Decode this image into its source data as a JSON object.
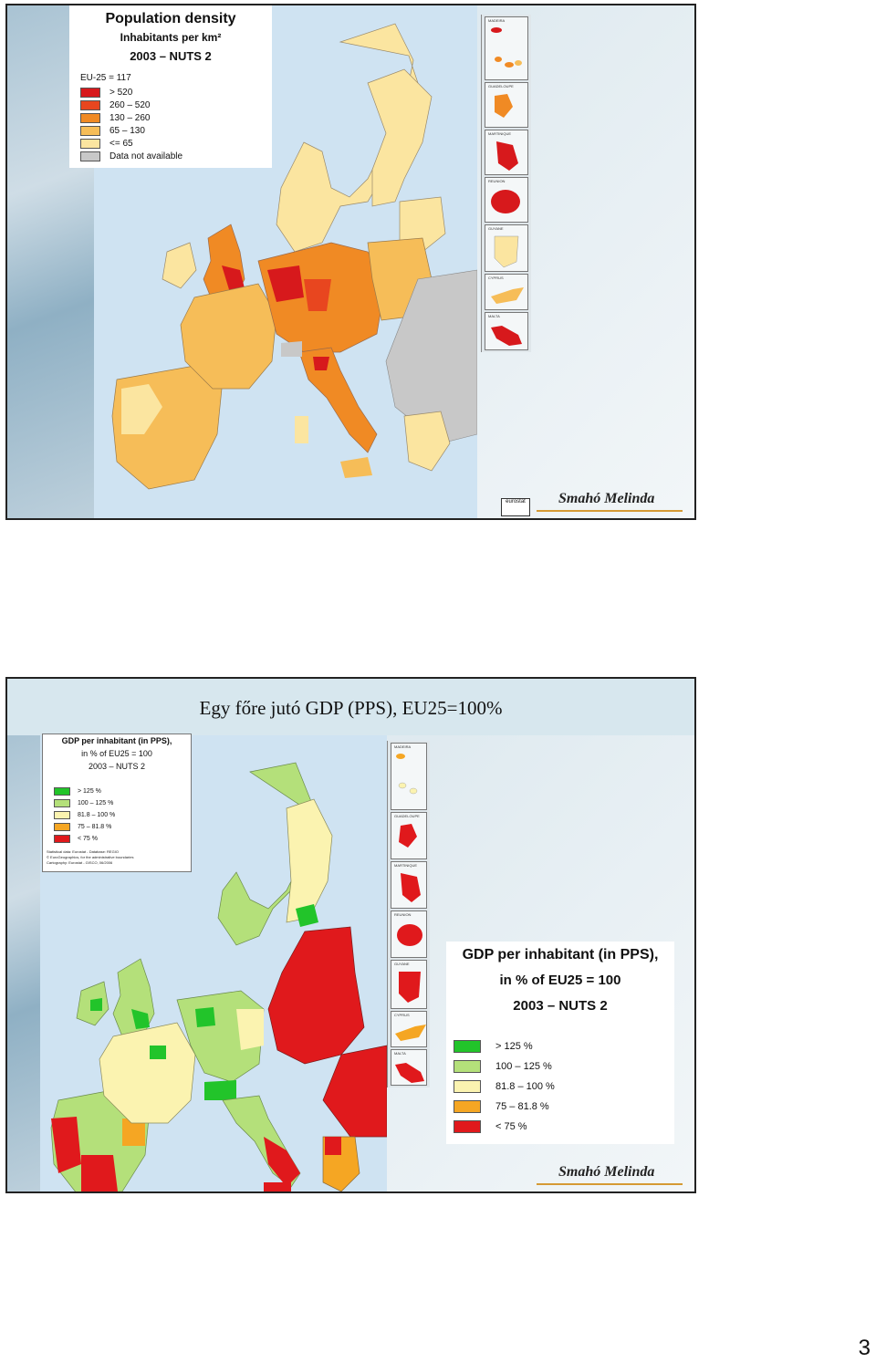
{
  "slide1": {
    "legend": {
      "title": "Population density",
      "subtitle1": "Inhabitants per km²",
      "subtitle2": "2003 – NUTS 2",
      "eu_average": "EU-25 = 117",
      "classes": [
        {
          "label": "> 520",
          "color": "#d7191c"
        },
        {
          "label": "260 – 520",
          "color": "#e8461f"
        },
        {
          "label": "130 – 260",
          "color": "#f08a24"
        },
        {
          "label": "65 – 130",
          "color": "#f6bd58"
        },
        {
          "label": "<= 65",
          "color": "#fbe5a0"
        },
        {
          "label": "Data not available",
          "color": "#c8c8c8"
        }
      ]
    },
    "insets": [
      "MADEIRA",
      "CANARIAS",
      "GUADELOUPE",
      "MARTINIQUE",
      "REUNION",
      "GUYANE",
      "CYPRUS",
      "MALTA"
    ],
    "author": "Smahó Melinda",
    "logo": "eurostat"
  },
  "slide2": {
    "title": "Egy főre jutó GDP (PPS), EU25=100%",
    "legend_small": {
      "title1": "GDP per inhabitant (in PPS),",
      "title2": "in % of EU25 = 100",
      "title3": "2003 – NUTS 2",
      "classes": [
        {
          "label": "> 125 %",
          "color": "#22c42a"
        },
        {
          "label": "100 – 125 %",
          "color": "#b4e07a"
        },
        {
          "label": "81.8 – 100 %",
          "color": "#fbf3b0"
        },
        {
          "label": "75 – 81.8 %",
          "color": "#f5a623"
        },
        {
          "label": "< 75 %",
          "color": "#e0191c"
        }
      ],
      "source1": "Statistical data: Eurostat - Database: REGIO",
      "source2": "© EuroGeographics, for the administrative boundaries",
      "source3": "Cartography: Eurostat - GISCO, 06/2006"
    },
    "legend_large": {
      "title1": "GDP per inhabitant (in PPS),",
      "title2": "in % of EU25 = 100",
      "title3": "2003 – NUTS 2",
      "classes": [
        {
          "label": "> 125 %",
          "color": "#22c42a"
        },
        {
          "label": "100 – 125 %",
          "color": "#b4e07a"
        },
        {
          "label": "81.8 – 100 %",
          "color": "#fbf3b0"
        },
        {
          "label": "75 – 81.8 %",
          "color": "#f5a623"
        },
        {
          "label": "< 75 %",
          "color": "#e0191c"
        }
      ]
    },
    "insets": [
      "MADEIRA",
      "CANARIAS",
      "GUADELOUPE",
      "MARTINIQUE",
      "REUNION",
      "GUYANE",
      "CYPRUS",
      "MALTA"
    ],
    "author": "Smahó Melinda"
  },
  "page_number": "3"
}
